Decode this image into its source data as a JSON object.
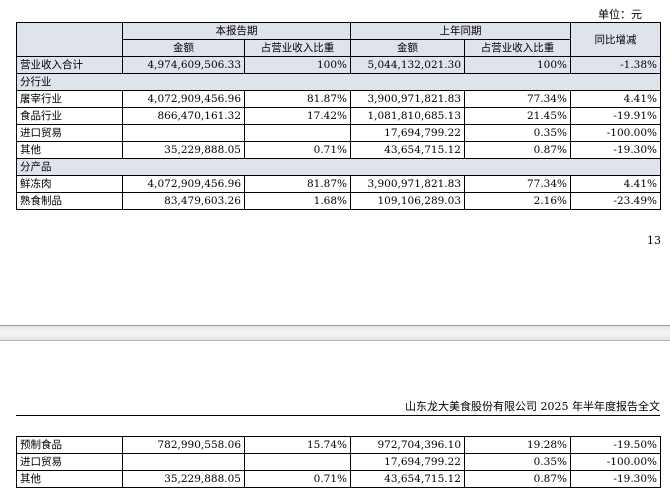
{
  "unit_label": "单位：元",
  "headers": {
    "current_period": "本报告期",
    "prior_period": "上年同期",
    "yoy": "同比增减",
    "amount": "金额",
    "share": "占营业收入比重"
  },
  "total_row": {
    "label": "营业收入合计",
    "cur_amount": "4,974,609,506.33",
    "cur_share": "100%",
    "prior_amount": "5,044,132,021.30",
    "prior_share": "100%",
    "yoy": "-1.38%"
  },
  "by_industry": {
    "title": "分行业",
    "rows": [
      {
        "label": "屠宰行业",
        "cur_amount": "4,072,909,456.96",
        "cur_share": "81.87%",
        "prior_amount": "3,900,971,821.83",
        "prior_share": "77.34%",
        "yoy": "4.41%"
      },
      {
        "label": "食品行业",
        "cur_amount": "866,470,161.32",
        "cur_share": "17.42%",
        "prior_amount": "1,081,810,685.13",
        "prior_share": "21.45%",
        "yoy": "-19.91%"
      },
      {
        "label": "进口贸易",
        "cur_amount": "",
        "cur_share": "",
        "prior_amount": "17,694,799.22",
        "prior_share": "0.35%",
        "yoy": "-100.00%"
      },
      {
        "label": "其他",
        "cur_amount": "35,229,888.05",
        "cur_share": "0.71%",
        "prior_amount": "43,654,715.12",
        "prior_share": "0.87%",
        "yoy": "-19.30%"
      }
    ]
  },
  "by_product": {
    "title": "分产品",
    "rows": [
      {
        "label": "鲜冻肉",
        "cur_amount": "4,072,909,456.96",
        "cur_share": "81.87%",
        "prior_amount": "3,900,971,821.83",
        "prior_share": "77.34%",
        "yoy": "4.41%"
      },
      {
        "label": "熟食制品",
        "cur_amount": "83,479,603.26",
        "cur_share": "1.68%",
        "prior_amount": "109,106,289.03",
        "prior_share": "2.16%",
        "yoy": "-23.49%"
      }
    ]
  },
  "page_number": "13",
  "running_header": "山东龙大美食股份有限公司 2025 年半年度报告全文",
  "continued_rows": [
    {
      "label": "预制食品",
      "cur_amount": "782,990,558.06",
      "cur_share": "15.74%",
      "prior_amount": "972,704,396.10",
      "prior_share": "19.28%",
      "yoy": "-19.50%"
    },
    {
      "label": "进口贸易",
      "cur_amount": "",
      "cur_share": "",
      "prior_amount": "17,694,799.22",
      "prior_share": "0.35%",
      "yoy": "-100.00%"
    },
    {
      "label": "其他",
      "cur_amount": "35,229,888.05",
      "cur_share": "0.71%",
      "prior_amount": "43,654,715.12",
      "prior_share": "0.87%",
      "yoy": "-19.30%"
    }
  ]
}
